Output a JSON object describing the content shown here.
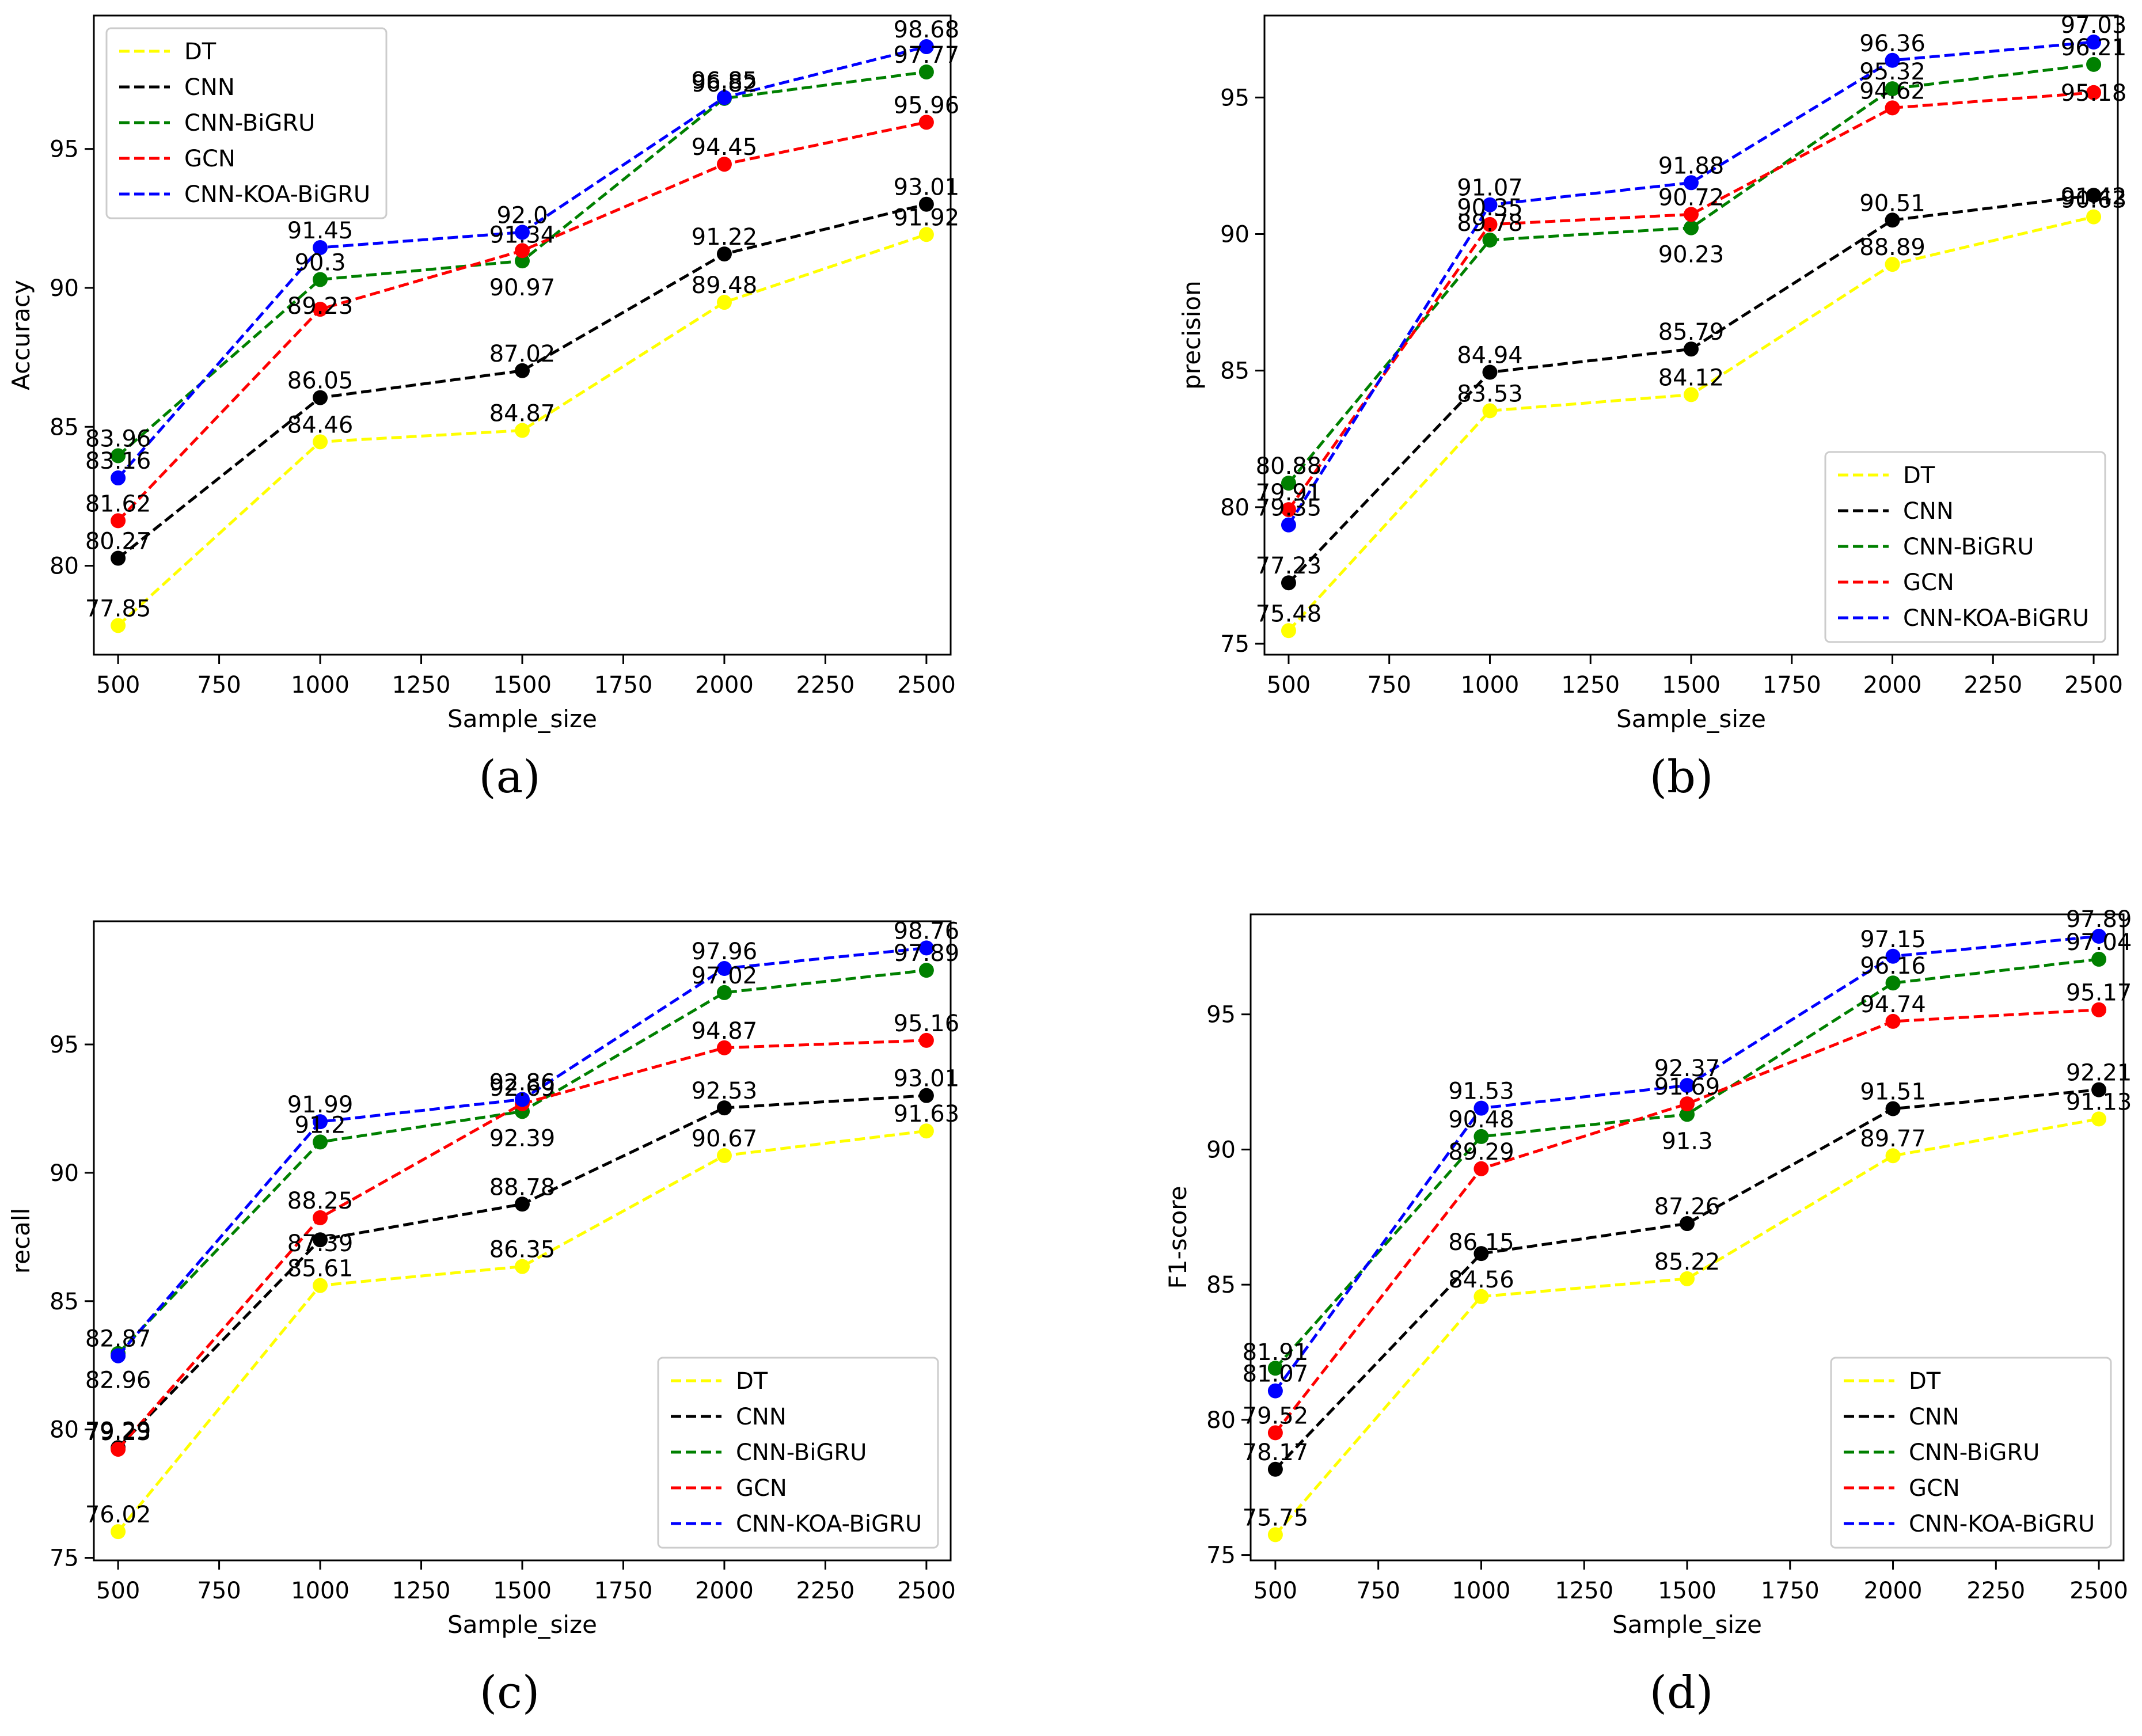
{
  "colors": {
    "DT": "#ffff00",
    "CNN": "#000000",
    "CNN-BiGRU": "#008000",
    "GCN": "#ff0000",
    "CNN-KOA-BiGRU": "#0000ff"
  },
  "chart_data": [
    {
      "type": "line",
      "caption": "(a)",
      "xlabel": "Sample_size",
      "ylabel": "Accuracy",
      "x": [
        500,
        1000,
        1500,
        2000,
        2500
      ],
      "xticks": [
        "500",
        "750",
        "1000",
        "1250",
        "1500",
        "1750",
        "2000",
        "2250",
        "2500"
      ],
      "yticks": [
        "80",
        "85",
        "90",
        "95"
      ],
      "xlim": [
        440,
        2560
      ],
      "ylim": [
        76.8,
        99.8
      ],
      "legend": "top-left",
      "series": [
        {
          "name": "DT",
          "values": [
            77.85,
            84.46,
            84.87,
            89.48,
            91.92
          ],
          "labels": [
            "77.85",
            "84.46",
            "84.87",
            "89.48",
            "91.92"
          ]
        },
        {
          "name": "CNN",
          "values": [
            80.27,
            86.05,
            87.02,
            91.22,
            93.01
          ],
          "labels": [
            "80.27",
            "86.05",
            "87.02",
            "91.22",
            "93.01"
          ]
        },
        {
          "name": "CNN-BiGRU",
          "values": [
            83.96,
            90.3,
            90.97,
            96.82,
            97.77
          ],
          "labels": [
            "83.96",
            "90.3",
            "90.97",
            "96.82",
            "97.77"
          ]
        },
        {
          "name": "GCN",
          "values": [
            81.62,
            89.23,
            91.34,
            94.45,
            95.96
          ],
          "labels": [
            "81.62",
            "89.23",
            "91.34",
            "94.45",
            "95.96"
          ]
        },
        {
          "name": "CNN-KOA-BiGRU",
          "values": [
            83.16,
            91.45,
            92.0,
            96.85,
            98.68
          ],
          "labels": [
            "83.16",
            "91.45",
            "92.0",
            "96.85",
            "98.68"
          ]
        }
      ]
    },
    {
      "type": "line",
      "caption": "(b)",
      "xlabel": "Sample_size",
      "ylabel": "precision",
      "x": [
        500,
        1000,
        1500,
        2000,
        2500
      ],
      "xticks": [
        "500",
        "750",
        "1000",
        "1250",
        "1500",
        "1750",
        "2000",
        "2250",
        "2500"
      ],
      "yticks": [
        "75",
        "80",
        "85",
        "90",
        "95"
      ],
      "xlim": [
        440,
        2560
      ],
      "ylim": [
        74.6,
        98.0
      ],
      "legend": "bottom-right",
      "series": [
        {
          "name": "DT",
          "values": [
            75.48,
            83.53,
            84.12,
            88.89,
            90.63
          ],
          "labels": [
            "75.48",
            "83.53",
            "84.12",
            "88.89",
            "90.63"
          ]
        },
        {
          "name": "CNN",
          "values": [
            77.23,
            84.94,
            85.79,
            90.51,
            91.42
          ],
          "labels": [
            "77.23",
            "84.94",
            "85.79",
            "90.51",
            "91.42"
          ]
        },
        {
          "name": "CNN-BiGRU",
          "values": [
            80.88,
            89.78,
            90.23,
            95.32,
            96.21
          ],
          "labels": [
            "80.88",
            "89.78",
            "90.23",
            "95.32",
            "96.21"
          ]
        },
        {
          "name": "GCN",
          "values": [
            79.91,
            90.35,
            90.72,
            94.62,
            95.18
          ],
          "labels": [
            "79.91",
            "90.35",
            "90.72",
            "94.62",
            "95.18"
          ]
        },
        {
          "name": "CNN-KOA-BiGRU",
          "values": [
            79.35,
            91.07,
            91.88,
            96.36,
            97.03
          ],
          "labels": [
            "79.35",
            "91.07",
            "91.88",
            "96.36",
            "97.03"
          ]
        }
      ]
    },
    {
      "type": "line",
      "caption": "(c)",
      "xlabel": "Sample_size",
      "ylabel": "recall",
      "x": [
        500,
        1000,
        1500,
        2000,
        2500
      ],
      "xticks": [
        "500",
        "750",
        "1000",
        "1250",
        "1500",
        "1750",
        "2000",
        "2250",
        "2500"
      ],
      "yticks": [
        "75",
        "80",
        "85",
        "90",
        "95"
      ],
      "xlim": [
        440,
        2560
      ],
      "ylim": [
        74.9,
        99.8
      ],
      "legend": "bottom-right",
      "series": [
        {
          "name": "DT",
          "values": [
            76.02,
            85.61,
            86.35,
            90.67,
            91.63
          ],
          "labels": [
            "76.02",
            "85.61",
            "86.35",
            "90.67",
            "91.63"
          ]
        },
        {
          "name": "CNN",
          "values": [
            79.29,
            87.39,
            88.78,
            92.53,
            93.01
          ],
          "labels": [
            "79.29",
            "87.39",
            "88.78",
            "92.53",
            "93.01"
          ]
        },
        {
          "name": "CNN-BiGRU",
          "values": [
            82.96,
            91.2,
            92.39,
            97.02,
            97.89
          ],
          "labels": [
            "82.96",
            "91.2",
            "92.39",
            "97.02",
            "97.89"
          ]
        },
        {
          "name": "GCN",
          "values": [
            79.23,
            88.25,
            92.69,
            94.87,
            95.16
          ],
          "labels": [
            "79.23",
            "88.25",
            "92.69",
            "94.87",
            "95.16"
          ]
        },
        {
          "name": "CNN-KOA-BiGRU",
          "values": [
            82.87,
            91.99,
            92.86,
            97.96,
            98.76
          ],
          "labels": [
            "82.87",
            "91.99",
            "92.86",
            "97.96",
            "98.76"
          ]
        }
      ]
    },
    {
      "type": "line",
      "caption": "(d)",
      "xlabel": "Sample_size",
      "ylabel": "F1-score",
      "x": [
        500,
        1000,
        1500,
        2000,
        2500
      ],
      "xticks": [
        "500",
        "750",
        "1000",
        "1250",
        "1500",
        "1750",
        "2000",
        "2250",
        "2500"
      ],
      "yticks": [
        "75",
        "80",
        "85",
        "90",
        "95"
      ],
      "xlim": [
        440,
        2560
      ],
      "ylim": [
        74.8,
        98.7
      ],
      "legend": "bottom-right",
      "series": [
        {
          "name": "DT",
          "values": [
            75.75,
            84.56,
            85.22,
            89.77,
            91.13
          ],
          "labels": [
            "75.75",
            "84.56",
            "85.22",
            "89.77",
            "91.13"
          ]
        },
        {
          "name": "CNN",
          "values": [
            78.17,
            86.15,
            87.26,
            91.51,
            92.21
          ],
          "labels": [
            "78.17",
            "86.15",
            "87.26",
            "91.51",
            "92.21"
          ]
        },
        {
          "name": "CNN-BiGRU",
          "values": [
            81.91,
            90.48,
            91.3,
            96.16,
            97.04
          ],
          "labels": [
            "81.91",
            "90.48",
            "91.3",
            "96.16",
            "97.04"
          ]
        },
        {
          "name": "GCN",
          "values": [
            79.52,
            89.29,
            91.69,
            94.74,
            95.17
          ],
          "labels": [
            "79.52",
            "89.29",
            "91.69",
            "94.74",
            "95.17"
          ]
        },
        {
          "name": "CNN-KOA-BiGRU",
          "values": [
            81.07,
            91.53,
            92.37,
            97.15,
            97.89
          ],
          "labels": [
            "81.07",
            "91.53",
            "92.37",
            "97.15",
            "97.89"
          ]
        }
      ]
    }
  ]
}
